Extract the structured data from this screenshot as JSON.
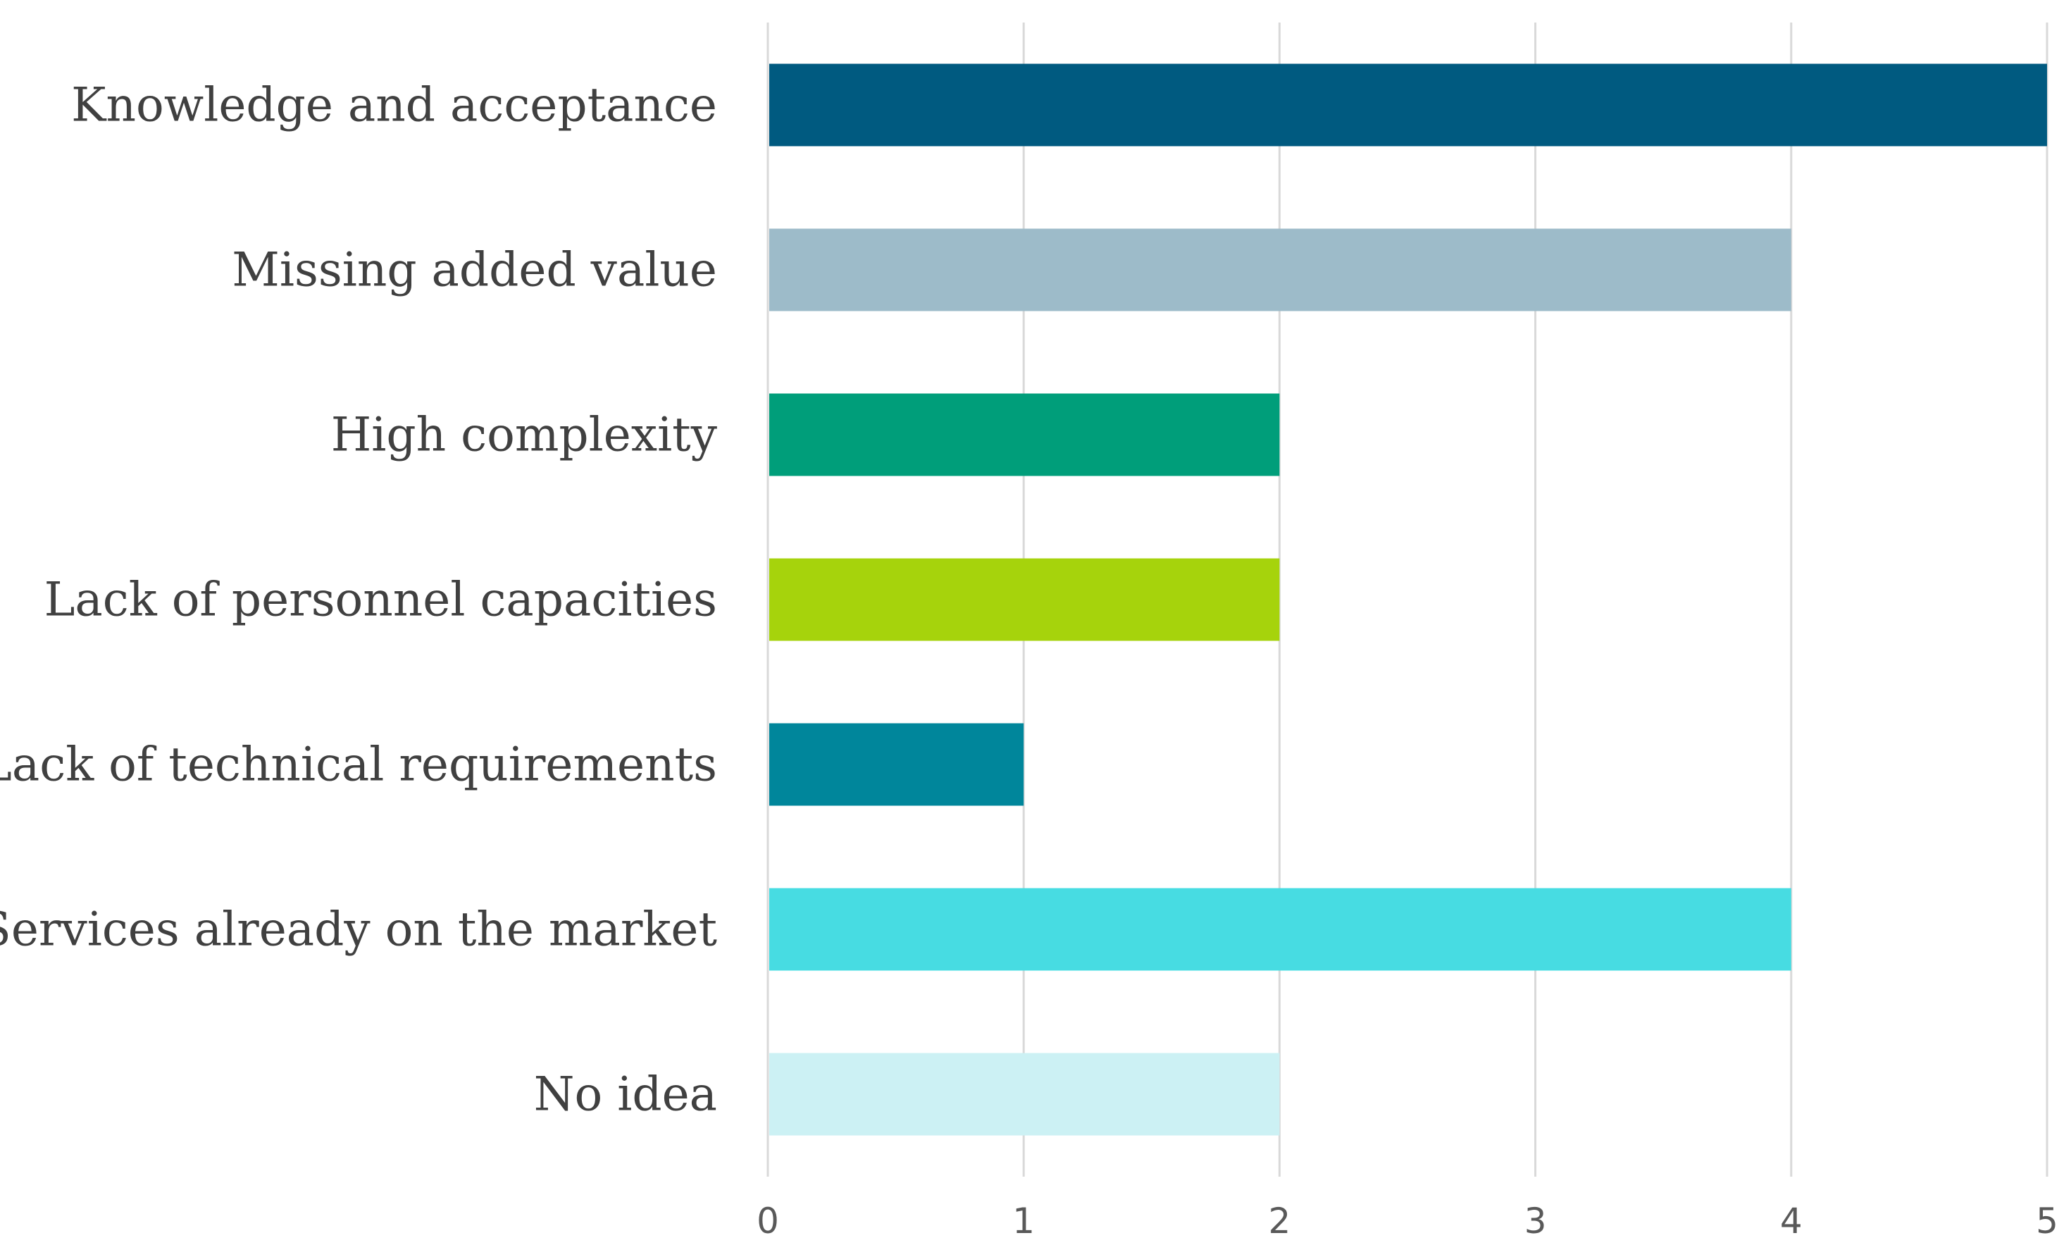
{
  "chart_data": {
    "type": "bar",
    "orientation": "horizontal",
    "title": "",
    "xlabel": "",
    "ylabel": "",
    "categories": [
      "Knowledge and acceptance",
      "Missing added value",
      "High complexity",
      "Lack of personnel capacities",
      "Lack of technical requirements",
      "Services already on the market",
      "No idea"
    ],
    "values": [
      5,
      4,
      2,
      2,
      1,
      4,
      2
    ],
    "colors": [
      "#005A80",
      "#9DBBC9",
      "#009E7A",
      "#A6D30C",
      "#00869B",
      "#47DCE2",
      "#CCF1F4"
    ],
    "xlim": [
      0,
      5
    ],
    "xticks": [
      "0",
      "1",
      "2",
      "3",
      "4",
      "5"
    ],
    "grid": true,
    "legend": "none"
  }
}
